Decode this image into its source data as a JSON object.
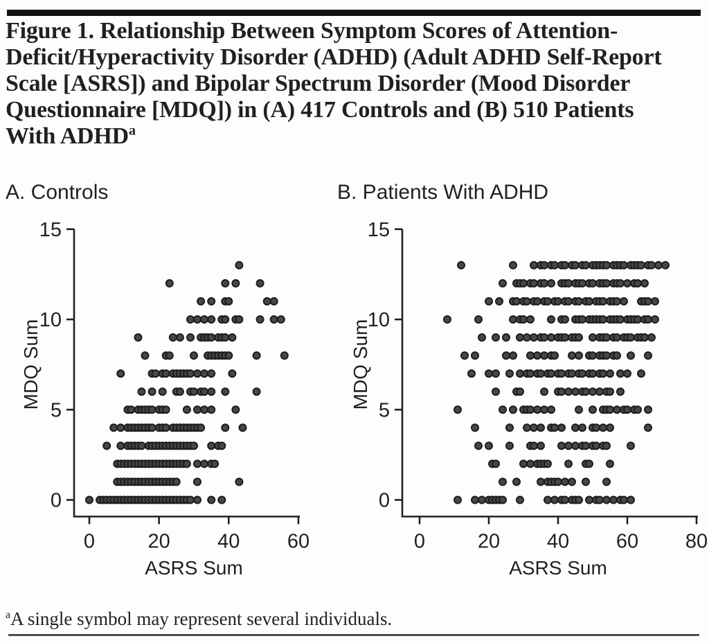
{
  "header": {
    "title": "Figure 1. Relationship Between Symptom Scores of Attention-Deficit/Hyperactivity Disorder (ADHD) (Adult ADHD Self-Report Scale [ASRS]) and Bipolar Spectrum Disorder (Mood Disorder Questionnaire [MDQ]) in (A) 417 Controls and (B) 510 Patients With ADHD",
    "title_superscript": "a"
  },
  "footnote": {
    "superscript": "a",
    "text": "A single symbol may represent several individuals."
  },
  "colors": {
    "dot_fill": "#474747",
    "dot_stroke": "#1c1c1c",
    "axis": "#231f20",
    "text": "#231f20",
    "top_bar": "#111111",
    "bottom_rule": "#4d4d4d"
  },
  "chart_data": [
    {
      "type": "scatter",
      "panel_label": "A. Controls",
      "group": "Controls",
      "n": 417,
      "xlabel": "ASRS Sum",
      "ylabel": "MDQ Sum",
      "xlim": [
        0,
        60
      ],
      "ylim": [
        0,
        15
      ],
      "xticks": [
        0,
        20,
        40,
        60
      ],
      "yticks": [
        0,
        5,
        10,
        15
      ],
      "grid": false,
      "points_by_mdq": {
        "13": [
          43
        ],
        "12": [
          23,
          39,
          42,
          49
        ],
        "11": [
          32,
          35,
          39,
          40,
          51,
          53
        ],
        "10": [
          29,
          31,
          33,
          35,
          38,
          39,
          42,
          43,
          49,
          53,
          55
        ],
        "9": [
          14,
          24,
          26,
          29,
          32,
          33,
          34,
          35,
          37,
          38,
          39,
          41
        ],
        "8": [
          16,
          22,
          23,
          30,
          34,
          35,
          36,
          37,
          38,
          39,
          40,
          48,
          56
        ],
        "7": [
          9,
          18,
          19,
          21,
          22,
          24,
          25,
          26,
          27,
          28,
          29,
          31,
          33,
          35,
          41
        ],
        "6": [
          15,
          18,
          21,
          25,
          26,
          29,
          30,
          32,
          33,
          35,
          39,
          48
        ],
        "5": [
          11,
          12,
          14,
          15,
          16,
          17,
          18,
          20,
          21,
          22,
          28,
          31,
          33,
          35,
          42
        ],
        "4": [
          7,
          9,
          11,
          12,
          13,
          14,
          15,
          16,
          17,
          18,
          20,
          21,
          22,
          24,
          25,
          26,
          27,
          28,
          29,
          30,
          31,
          32,
          39,
          44
        ],
        "3": [
          5,
          9,
          11,
          12,
          13,
          14,
          15,
          17,
          18,
          19,
          20,
          21,
          22,
          23,
          24,
          25,
          26,
          27,
          28,
          29,
          30,
          35,
          37,
          38
        ],
        "2": [
          8,
          9,
          10,
          11,
          12,
          13,
          14,
          15,
          16,
          17,
          18,
          19,
          20,
          21,
          22,
          23,
          24,
          25,
          26,
          27,
          28,
          31,
          33,
          35,
          36
        ],
        "1": [
          8,
          9,
          10,
          11,
          12,
          13,
          14,
          15,
          16,
          17,
          18,
          19,
          20,
          21,
          22,
          23,
          24,
          25,
          31,
          43
        ],
        "0": [
          0,
          3,
          4,
          5,
          6,
          7,
          8,
          9,
          10,
          11,
          12,
          13,
          14,
          15,
          16,
          17,
          18,
          19,
          20,
          21,
          22,
          23,
          24,
          25,
          26,
          27,
          28,
          29,
          31,
          35,
          38
        ]
      }
    },
    {
      "type": "scatter",
      "panel_label": "B. Patients With ADHD",
      "group": "Patients With ADHD",
      "n": 510,
      "xlabel": "ASRS Sum",
      "ylabel": "MDQ Sum",
      "xlim": [
        0,
        80
      ],
      "ylim": [
        0,
        15
      ],
      "xticks": [
        0,
        20,
        40,
        60,
        80
      ],
      "yticks": [
        0,
        5,
        10,
        15
      ],
      "grid": false,
      "points_by_mdq": {
        "13": [
          12,
          27,
          33,
          35,
          36,
          38,
          39,
          41,
          42,
          44,
          45,
          47,
          48,
          50,
          51,
          52,
          53,
          54,
          56,
          57,
          58,
          59,
          61,
          62,
          63,
          64,
          66,
          67,
          69,
          71
        ],
        "12": [
          24,
          28,
          29,
          30,
          32,
          33,
          35,
          36,
          38,
          41,
          42,
          43,
          45,
          46,
          47,
          49,
          50,
          52,
          53,
          54,
          56,
          57,
          58,
          60,
          62,
          63,
          65
        ],
        "11": [
          20,
          23,
          27,
          28,
          30,
          31,
          33,
          34,
          36,
          37,
          39,
          40,
          42,
          43,
          45,
          46,
          48,
          49,
          51,
          52,
          53,
          55,
          56,
          57,
          59,
          64,
          65,
          66,
          68
        ],
        "10": [
          8,
          17,
          27,
          29,
          30,
          32,
          38,
          41,
          42,
          45,
          46,
          47,
          49,
          50,
          51,
          52,
          53,
          55,
          56,
          57,
          58,
          60,
          61,
          62,
          63,
          65,
          66,
          68
        ],
        "9": [
          18,
          22,
          25,
          29,
          31,
          33,
          35,
          36,
          38,
          40,
          41,
          42,
          44,
          45,
          46,
          50,
          52,
          53,
          54,
          56,
          57,
          59,
          60,
          61,
          63,
          64,
          65,
          67
        ],
        "8": [
          13,
          16,
          25,
          27,
          32,
          34,
          36,
          38,
          39,
          44,
          46,
          49,
          50,
          52,
          53,
          54,
          56,
          57,
          61,
          66
        ],
        "7": [
          15,
          20,
          22,
          26,
          29,
          31,
          32,
          34,
          35,
          37,
          38,
          40,
          41,
          43,
          44,
          46,
          47,
          49,
          50,
          52,
          53,
          55,
          58,
          60,
          64
        ],
        "6": [
          22,
          28,
          29,
          36,
          40,
          41,
          43,
          45,
          47,
          48,
          50,
          52,
          54,
          55,
          58
        ],
        "5": [
          11,
          24,
          27,
          30,
          31,
          32,
          34,
          36,
          38,
          46,
          50,
          53,
          54,
          55,
          57,
          59,
          60,
          62,
          63,
          66
        ],
        "4": [
          16,
          26,
          31,
          33,
          35,
          38,
          39,
          41,
          45,
          47,
          50,
          51,
          53,
          55,
          66
        ],
        "3": [
          17,
          20,
          26,
          32,
          33,
          35,
          41,
          43,
          45,
          47,
          48,
          50,
          51,
          53,
          54,
          61
        ],
        "2": [
          21,
          22,
          30,
          32,
          34,
          35,
          36,
          37,
          43,
          48,
          49,
          55
        ],
        "1": [
          24,
          28,
          35,
          37,
          38,
          39,
          40,
          42,
          44,
          48,
          54
        ],
        "0": [
          11,
          16,
          18,
          20,
          21,
          22,
          23,
          24,
          29,
          37,
          39,
          41,
          42,
          44,
          45,
          46,
          49,
          51,
          52,
          54,
          56,
          58,
          59,
          61
        ]
      }
    }
  ]
}
